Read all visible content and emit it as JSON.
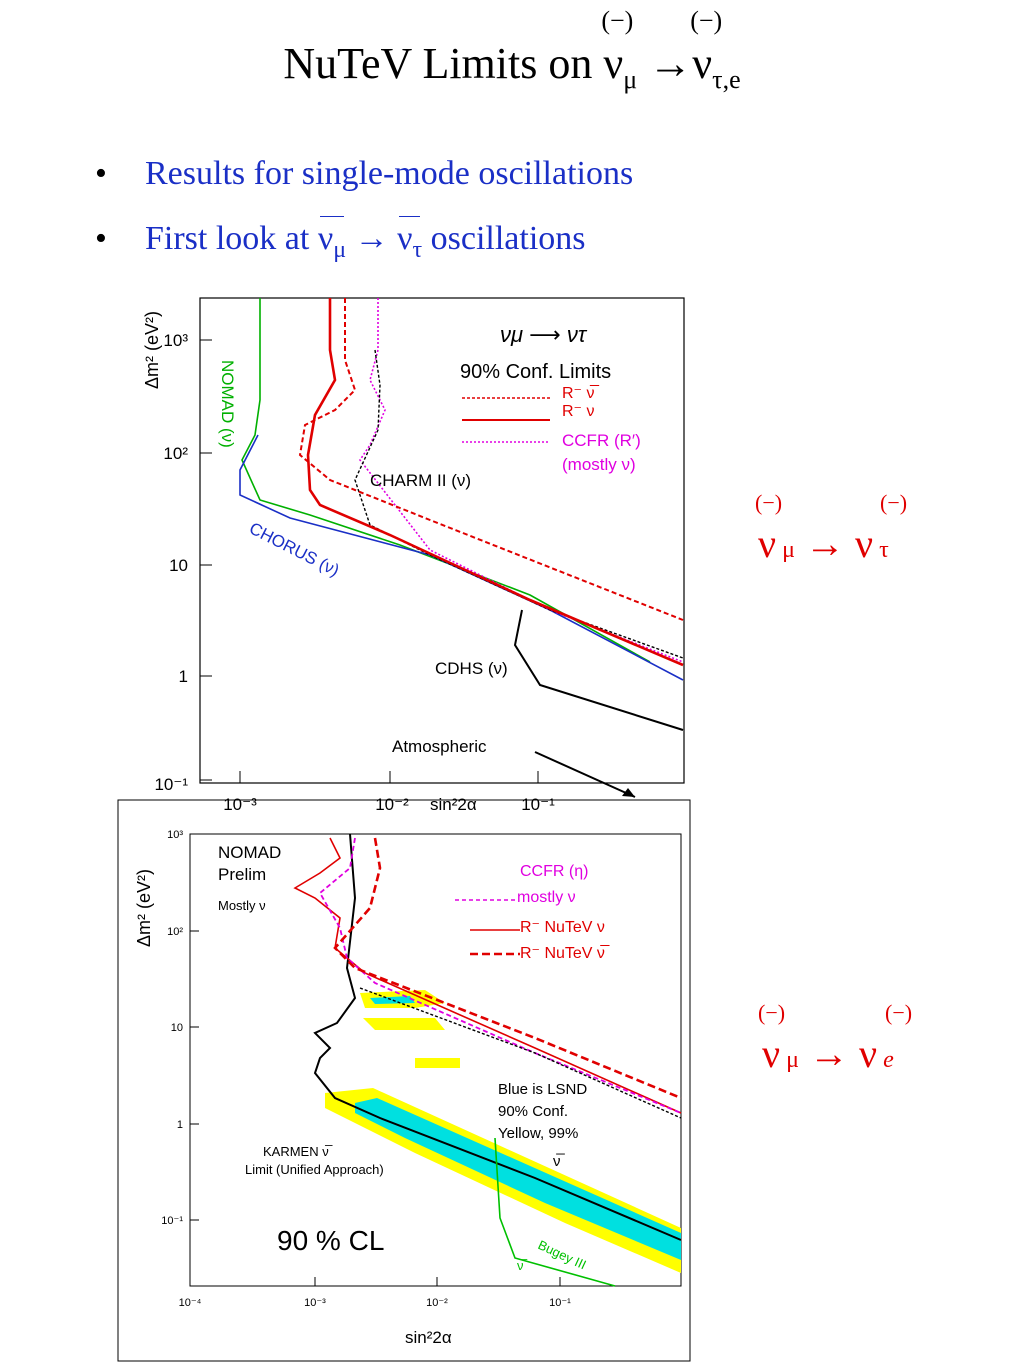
{
  "title": {
    "text": "NuTeV Limits on",
    "nu_mu": "ν",
    "sub_mu": "μ",
    "arrow": "→",
    "nu_te": "ν",
    "sub_te": "τ,e",
    "bar1": "(−)",
    "bar2": "(−)"
  },
  "bullets": [
    {
      "mark": "•",
      "text": "Results for single-mode oscillations"
    },
    {
      "mark": "•",
      "pre": "First look at",
      "nu1": "ν",
      "sub1": "μ",
      "arrow": "→",
      "nu2": "ν",
      "sub2": "τ",
      "post": "oscillations"
    }
  ],
  "labels": {
    "numu_nutau": {
      "bar1": "(−)",
      "bar2": "(−)",
      "nu1": "ν",
      "sub1": "μ",
      "arrow": "→",
      "nu2": "ν",
      "sub2": "τ"
    },
    "numu_nue": {
      "bar1": "(−)",
      "bar2": "(−)",
      "nu1": "ν",
      "sub1": "μ",
      "arrow": "→",
      "nu2": "ν",
      "sub2": "e"
    }
  },
  "plot_top": {
    "ylabel": "Δm² (eV²)",
    "xlabel": "sin²2α",
    "y_ticks": [
      "10³",
      "10²",
      "10",
      "1",
      "10⁻¹"
    ],
    "x_ticks": [
      "10⁻³",
      "10⁻²",
      "10⁻¹"
    ],
    "legend_title": "νμ ⟶ ντ",
    "legend_sub": "90% Conf. Limits",
    "legend": [
      "R⁻ ν̅",
      "R⁻ ν",
      "CCFR (R′)",
      "(mostly ν)"
    ],
    "annotations": [
      "NOMAD (ν)",
      "CHORUS (ν)",
      "CHARM II (ν)",
      "CDHS (ν)",
      "Atmospheric"
    ],
    "colors": {
      "nutev": "#e00000",
      "ccfr": "#e000e0",
      "nomad": "#00b000",
      "chorus": "#1a2fc6",
      "charm": "#000000"
    }
  },
  "plot_bottom": {
    "ylabel": "Δm² (eV²)",
    "xlabel": "sin²2α",
    "y_ticks": [
      "10³",
      "10²",
      "10",
      "1",
      "10⁻¹"
    ],
    "x_ticks": [
      "10⁻⁴",
      "10⁻³",
      "10⁻²",
      "10⁻¹"
    ],
    "annotations": [
      "NOMAD",
      "Prelim",
      "Mostly ν",
      "KARMEN ν̅",
      "Limit (Unified Approach)",
      "90 % CL",
      "Blue is LSND",
      "90% Conf.",
      "Yellow, 99%",
      "ν̅",
      "Bugey III",
      "ν̅"
    ],
    "legend": [
      "CCFR (η)",
      "mostly ν",
      "R⁻ NuTeV ν",
      "R⁻ NuTeV ν̅"
    ],
    "colors": {
      "lsnd90": "#00e0e0",
      "lsnd99": "#ffff00",
      "nutev": "#e00000",
      "ccfr": "#e000e0",
      "bugey": "#00c000"
    }
  }
}
